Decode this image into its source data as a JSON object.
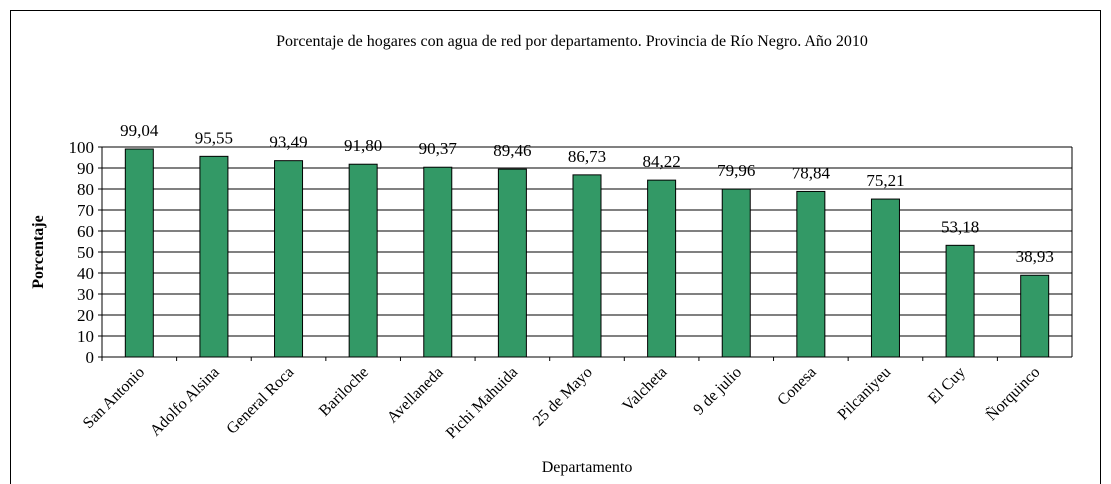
{
  "chart_data": {
    "type": "bar",
    "title": "Porcentaje de hogares con agua de red por departamento. Provincia de Río Negro. Año 2010",
    "x_label": "Departamento",
    "y_label": "Porcentaje",
    "categories": [
      "San Antonio",
      "Adolfo Alsina",
      "General Roca",
      "Bariloche",
      "Avellaneda",
      "Pichi Mahuida",
      "25 de Mayo",
      "Valcheta",
      "9 de julio",
      "Conesa",
      "Pilcaniyeu",
      "El Cuy",
      "Ñorquinco"
    ],
    "values": [
      99.04,
      95.55,
      93.49,
      91.8,
      90.37,
      89.46,
      86.73,
      84.22,
      79.96,
      78.84,
      75.21,
      53.18,
      38.93
    ],
    "value_labels": [
      "99,04",
      "95,55",
      "93,49",
      "91,80",
      "90,37",
      "89,46",
      "86,73",
      "84,22",
      "79,96",
      "78,84",
      "75,21",
      "53,18",
      "38,93"
    ],
    "color": "#339966",
    "ylim": [
      0,
      100
    ],
    "yticks": [
      0,
      10,
      20,
      30,
      40,
      50,
      60,
      70,
      80,
      90,
      100
    ],
    "grid": true
  }
}
